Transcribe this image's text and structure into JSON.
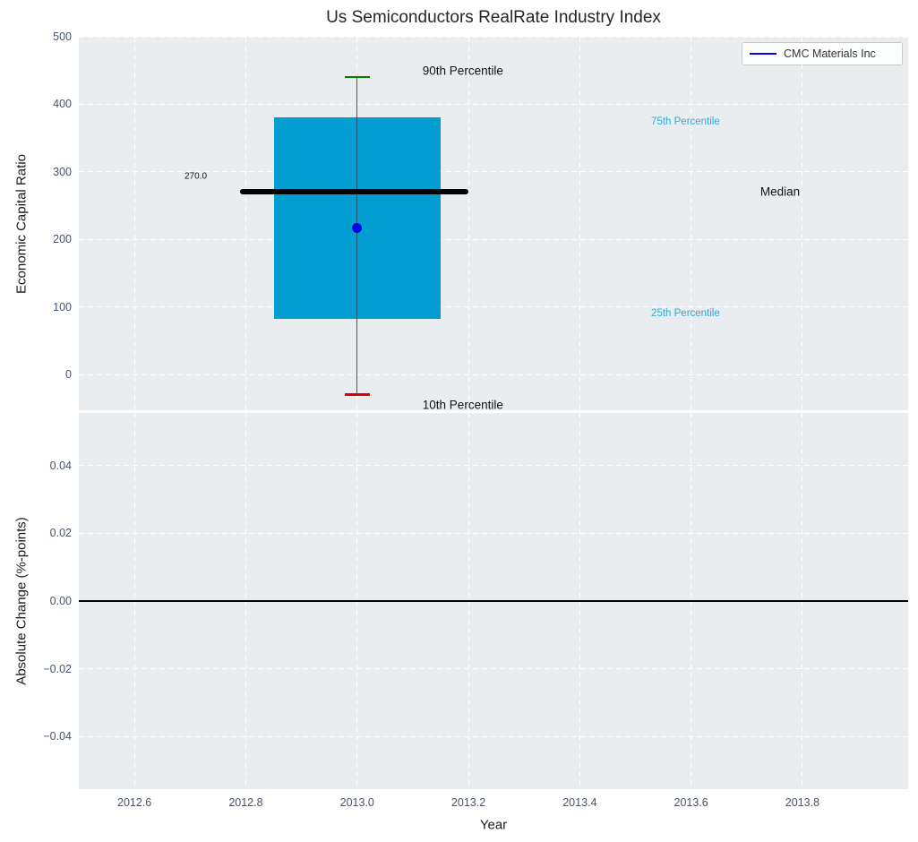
{
  "title": "Us Semiconductors RealRate Industry Index",
  "legend": {
    "label": "CMC Materials Inc",
    "line_color": "#0000ee"
  },
  "chart_data": [
    {
      "type": "boxplot",
      "title": "Us Semiconductors RealRate Industry Index",
      "ylabel": "Economic Capital Ratio",
      "ylim": [
        -53,
        500
      ],
      "yticks": [
        {
          "v": 0,
          "label": "0"
        },
        {
          "v": 100,
          "label": "100"
        },
        {
          "v": 200,
          "label": "200"
        },
        {
          "v": 300,
          "label": "300"
        },
        {
          "v": 400,
          "label": "400"
        },
        {
          "v": 500,
          "label": "500"
        }
      ],
      "grid": "white-dashed",
      "background": "#e9edf0",
      "box": {
        "x_center": 2013.0,
        "x_left": 2012.85,
        "x_right": 2013.15,
        "q1": 82,
        "median": 270,
        "q3": 380,
        "p10": -30,
        "p90": 440,
        "median_label": "270.0",
        "median_line_x": [
          2012.79,
          2013.2
        ],
        "company_point": {
          "name": "CMC Materials Inc",
          "x": 2013.0,
          "value": 217
        },
        "colors": {
          "box": "#029ed2",
          "median": "#000000",
          "p90_cap": "#008000",
          "p10_cap": "#e10000",
          "whisker": "#555555",
          "point": "#0000ee"
        }
      },
      "annotations": [
        {
          "name": "label-90th-percentile",
          "text": "90th Percentile",
          "x": 2013.19,
          "y": 450,
          "color": "#111111",
          "size": 13.5
        },
        {
          "name": "label-75th-percentile",
          "text": "75th Percentile",
          "x": 2013.59,
          "y": 374,
          "color": "#2ea9dc",
          "size": 11.5
        },
        {
          "name": "label-median-value",
          "text": "270.0",
          "x": 2012.71,
          "y": 293,
          "color": "#111111",
          "size": 10
        },
        {
          "name": "label-median",
          "text": "Median",
          "x": 2013.76,
          "y": 270,
          "color": "#111111",
          "size": 13.5
        },
        {
          "name": "label-25th-percentile",
          "text": "25th Percentile",
          "x": 2013.59,
          "y": 90,
          "color": "#2ea9dc",
          "size": 11.5
        },
        {
          "name": "label-10th-percentile",
          "text": "10th Percentile",
          "x": 2013.19,
          "y": -45,
          "color": "#111111",
          "size": 13.5
        }
      ]
    },
    {
      "type": "line",
      "ylabel": "Absolute Change (%-points)",
      "xlabel": "Year",
      "ylim": [
        -0.0555,
        0.0555
      ],
      "yticks": [
        {
          "v": -0.04,
          "label": "−0.04"
        },
        {
          "v": -0.02,
          "label": "−0.02"
        },
        {
          "v": 0.0,
          "label": "0.00"
        },
        {
          "v": 0.02,
          "label": "0.02"
        },
        {
          "v": 0.04,
          "label": "0.04"
        }
      ],
      "xlim": [
        2012.5,
        2013.99
      ],
      "xticks": [
        {
          "v": 2012.6,
          "label": "2012.6"
        },
        {
          "v": 2012.8,
          "label": "2012.8"
        },
        {
          "v": 2013.0,
          "label": "2013.0"
        },
        {
          "v": 2013.2,
          "label": "2013.2"
        },
        {
          "v": 2013.4,
          "label": "2013.4"
        },
        {
          "v": 2013.6,
          "label": "2013.6"
        },
        {
          "v": 2013.8,
          "label": "2013.8"
        }
      ],
      "zero_line": {
        "value": 0.0,
        "color": "#000000"
      },
      "grid": "white-dashed",
      "background": "#e9edf0"
    }
  ]
}
